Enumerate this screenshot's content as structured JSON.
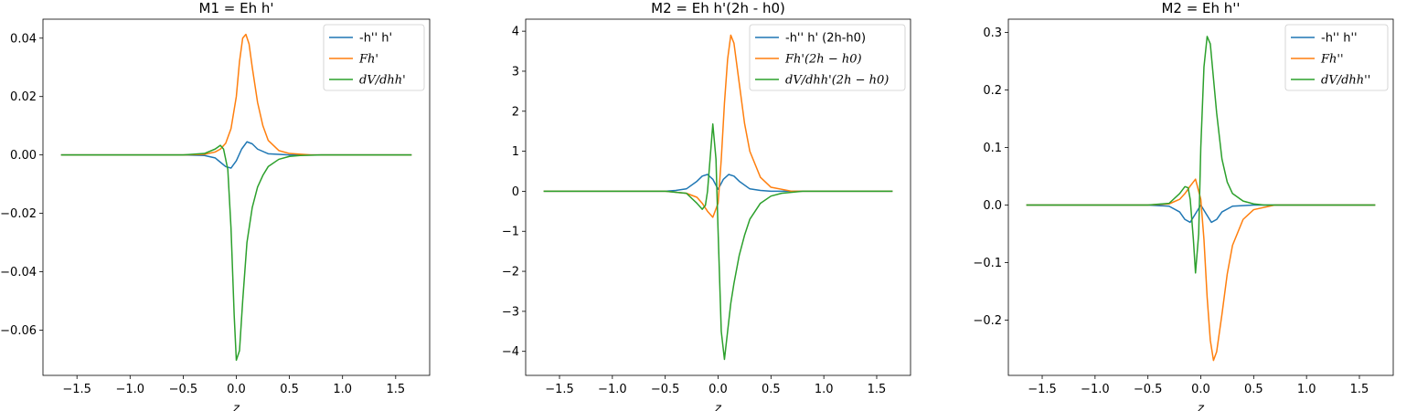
{
  "chart_data": [
    {
      "type": "line",
      "title": "M1 = Eh h'",
      "xlabel": "z",
      "xlim": [
        -1.82,
        1.82
      ],
      "ylim": [
        -0.0755,
        0.0465
      ],
      "xticks": [
        -1.5,
        -1.0,
        -0.5,
        0.0,
        0.5,
        1.0,
        1.5
      ],
      "xtick_labels": [
        "−1.5",
        "−1.0",
        "−0.5",
        "0.0",
        "0.5",
        "1.0",
        "1.5"
      ],
      "yticks": [
        -0.06,
        -0.04,
        -0.02,
        0.0,
        0.02,
        0.04
      ],
      "ytick_labels": [
        "−0.06",
        "−0.04",
        "−0.02",
        "0.00",
        "0.02",
        "0.04"
      ],
      "legend_position": "upper right",
      "series": [
        {
          "name": "-h'' h'",
          "color": "#1f77b4",
          "x": [
            -1.65,
            -0.5,
            -0.3,
            -0.2,
            -0.15,
            -0.1,
            -0.05,
            0.0,
            0.05,
            0.1,
            0.15,
            0.2,
            0.3,
            0.5,
            1.65
          ],
          "y": [
            0,
            0,
            -0.0002,
            -0.001,
            -0.0025,
            -0.004,
            -0.0045,
            -0.002,
            0.002,
            0.0045,
            0.0038,
            0.002,
            0.0004,
            0,
            0
          ]
        },
        {
          "name": "Fh'",
          "color": "#ff7f0e",
          "x": [
            -1.65,
            -0.5,
            -0.3,
            -0.2,
            -0.15,
            -0.1,
            -0.05,
            0.0,
            0.03,
            0.06,
            0.09,
            0.12,
            0.15,
            0.2,
            0.25,
            0.3,
            0.4,
            0.5,
            0.7,
            1.65
          ],
          "y": [
            0,
            0,
            0.0002,
            0.001,
            0.002,
            0.004,
            0.009,
            0.02,
            0.032,
            0.04,
            0.0413,
            0.038,
            0.03,
            0.018,
            0.01,
            0.005,
            0.0015,
            0.0005,
            0,
            0
          ]
        },
        {
          "name": "dV/dhh'",
          "color": "#2ca02c",
          "x": [
            -1.65,
            -0.5,
            -0.3,
            -0.2,
            -0.15,
            -0.12,
            -0.08,
            -0.05,
            -0.02,
            0.0,
            0.03,
            0.06,
            0.1,
            0.15,
            0.2,
            0.25,
            0.3,
            0.4,
            0.5,
            0.6,
            0.8,
            1.65
          ],
          "y": [
            0,
            0,
            0.0005,
            0.002,
            0.0033,
            0.002,
            -0.005,
            -0.025,
            -0.055,
            -0.0703,
            -0.067,
            -0.05,
            -0.03,
            -0.018,
            -0.011,
            -0.007,
            -0.004,
            -0.0015,
            -0.0005,
            -0.0002,
            0,
            0
          ]
        }
      ]
    },
    {
      "type": "line",
      "title": "M2 = Eh h'(2h - h0)",
      "xlabel": "z",
      "xlim": [
        -1.82,
        1.82
      ],
      "ylim": [
        -4.6,
        4.3
      ],
      "xticks": [
        -1.5,
        -1.0,
        -0.5,
        0.0,
        0.5,
        1.0,
        1.5
      ],
      "xtick_labels": [
        "−1.5",
        "−1.0",
        "−0.5",
        "0.0",
        "0.5",
        "1.0",
        "1.5"
      ],
      "yticks": [
        -4,
        -3,
        -2,
        -1,
        0,
        1,
        2,
        3,
        4
      ],
      "ytick_labels": [
        "−4",
        "−3",
        "−2",
        "−1",
        "0",
        "1",
        "2",
        "3",
        "4"
      ],
      "legend_position": "upper right",
      "series": [
        {
          "name": "-h'' h' (2h-h0)",
          "color": "#1f77b4",
          "x": [
            -1.65,
            -0.5,
            -0.4,
            -0.3,
            -0.2,
            -0.15,
            -0.1,
            -0.05,
            0.0,
            0.05,
            0.1,
            0.15,
            0.2,
            0.3,
            0.4,
            0.5,
            1.65
          ],
          "y": [
            0,
            0,
            0.02,
            0.06,
            0.25,
            0.38,
            0.42,
            0.3,
            0.05,
            0.3,
            0.42,
            0.38,
            0.25,
            0.06,
            0.02,
            0,
            0
          ]
        },
        {
          "name": "Fh'(2h − h0)",
          "color": "#ff7f0e",
          "x": [
            -1.65,
            -0.5,
            -0.3,
            -0.2,
            -0.15,
            -0.1,
            -0.05,
            0.0,
            0.03,
            0.06,
            0.09,
            0.12,
            0.15,
            0.2,
            0.25,
            0.3,
            0.4,
            0.5,
            0.7,
            1.65
          ],
          "y": [
            0,
            0,
            -0.05,
            -0.15,
            -0.3,
            -0.5,
            -0.65,
            -0.3,
            0.8,
            2.2,
            3.3,
            3.9,
            3.7,
            2.7,
            1.7,
            1.0,
            0.35,
            0.1,
            0,
            0
          ]
        },
        {
          "name": "dV/dhh'(2h − h0)",
          "color": "#2ca02c",
          "x": [
            -1.65,
            -0.5,
            -0.3,
            -0.2,
            -0.15,
            -0.12,
            -0.1,
            -0.07,
            -0.05,
            -0.02,
            0.0,
            0.03,
            0.06,
            0.09,
            0.12,
            0.15,
            0.2,
            0.25,
            0.3,
            0.4,
            0.5,
            0.6,
            0.8,
            1.65
          ],
          "y": [
            0,
            0,
            -0.05,
            -0.3,
            -0.45,
            -0.35,
            0.0,
            1.0,
            1.68,
            0.8,
            -1.0,
            -3.5,
            -4.2,
            -3.5,
            -2.8,
            -2.3,
            -1.6,
            -1.1,
            -0.7,
            -0.3,
            -0.12,
            -0.05,
            0,
            0
          ]
        }
      ]
    },
    {
      "type": "line",
      "title": "M2 = Eh h''",
      "xlabel": "z",
      "xlim": [
        -1.82,
        1.82
      ],
      "ylim": [
        -0.296,
        0.323
      ],
      "xticks": [
        -1.5,
        -1.0,
        -0.5,
        0.0,
        0.5,
        1.0,
        1.5
      ],
      "xtick_labels": [
        "−1.5",
        "−1.0",
        "−0.5",
        "0.0",
        "0.5",
        "1.0",
        "1.5"
      ],
      "yticks": [
        -0.2,
        -0.1,
        0.0,
        0.1,
        0.2,
        0.3
      ],
      "ytick_labels": [
        "−0.2",
        "−0.1",
        "0.0",
        "0.1",
        "0.2",
        "0.3"
      ],
      "legend_position": "upper right",
      "series": [
        {
          "name": "-h'' h''",
          "color": "#1f77b4",
          "x": [
            -1.65,
            -0.5,
            -0.3,
            -0.2,
            -0.15,
            -0.1,
            -0.05,
            0.0,
            0.05,
            0.1,
            0.15,
            0.2,
            0.3,
            0.5,
            1.65
          ],
          "y": [
            0,
            0,
            -0.002,
            -0.012,
            -0.025,
            -0.03,
            -0.015,
            0.0,
            -0.015,
            -0.03,
            -0.025,
            -0.012,
            -0.002,
            0,
            0
          ]
        },
        {
          "name": "Fh''",
          "color": "#ff7f0e",
          "x": [
            -1.65,
            -0.5,
            -0.3,
            -0.2,
            -0.15,
            -0.1,
            -0.05,
            0.0,
            0.03,
            0.06,
            0.09,
            0.12,
            0.15,
            0.2,
            0.25,
            0.3,
            0.4,
            0.5,
            0.7,
            1.65
          ],
          "y": [
            0,
            0,
            0.002,
            0.01,
            0.02,
            0.033,
            0.045,
            0.01,
            -0.06,
            -0.16,
            -0.235,
            -0.27,
            -0.255,
            -0.19,
            -0.12,
            -0.07,
            -0.025,
            -0.008,
            0,
            0
          ]
        },
        {
          "name": "dV/dhh''",
          "color": "#2ca02c",
          "x": [
            -1.65,
            -0.5,
            -0.3,
            -0.2,
            -0.15,
            -0.12,
            -0.1,
            -0.07,
            -0.05,
            -0.02,
            0.0,
            0.03,
            0.06,
            0.09,
            0.12,
            0.15,
            0.2,
            0.25,
            0.3,
            0.4,
            0.5,
            0.6,
            0.8,
            1.65
          ],
          "y": [
            0,
            0,
            0.003,
            0.02,
            0.032,
            0.03,
            0.01,
            -0.06,
            -0.118,
            -0.05,
            0.1,
            0.24,
            0.293,
            0.28,
            0.22,
            0.16,
            0.08,
            0.04,
            0.02,
            0.007,
            0.002,
            0,
            0,
            0
          ]
        }
      ]
    }
  ]
}
